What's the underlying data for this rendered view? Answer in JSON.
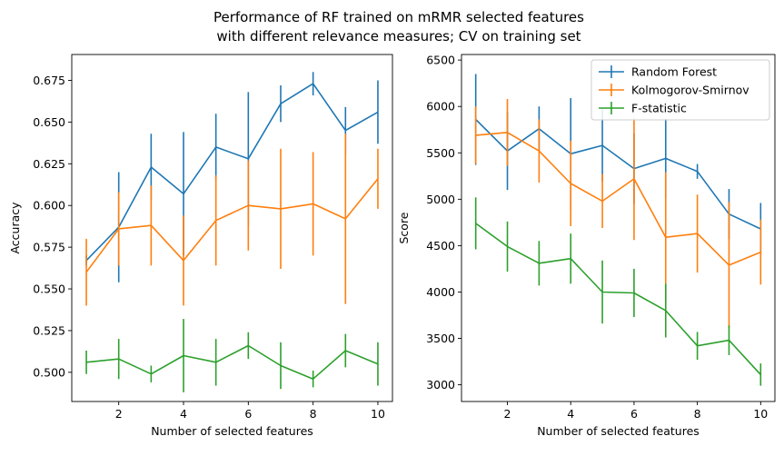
{
  "figure": {
    "title_line1": "Performance of RF trained on mRMR selected features",
    "title_line2": "with different relevance measures; CV on training set"
  },
  "chart_data": [
    {
      "type": "line",
      "xlabel": "Number of selected features",
      "ylabel": "Accuracy",
      "x": [
        1,
        2,
        3,
        4,
        5,
        6,
        7,
        8,
        9,
        10
      ],
      "xlim": [
        0.55,
        10.45
      ],
      "ylim": [
        0.4825,
        0.6905
      ],
      "xticks": [
        2,
        4,
        6,
        8,
        10
      ],
      "yticks": [
        0.5,
        0.525,
        0.55,
        0.575,
        0.6,
        0.625,
        0.65,
        0.675
      ],
      "ytick_labels": [
        "0.500",
        "0.525",
        "0.550",
        "0.575",
        "0.600",
        "0.625",
        "0.650",
        "0.675"
      ],
      "series": [
        {
          "name": "Random Forest",
          "color": "#1f77b4",
          "values": [
            0.567,
            0.587,
            0.623,
            0.607,
            0.635,
            0.628,
            0.661,
            0.673,
            0.645,
            0.656
          ],
          "errors": [
            0.003,
            0.033,
            0.02,
            0.037,
            0.02,
            0.04,
            0.011,
            0.007,
            0.014,
            0.019
          ]
        },
        {
          "name": "Kolmogorov-Smirnov",
          "color": "#ff7f0e",
          "values": [
            0.56,
            0.586,
            0.588,
            0.567,
            0.591,
            0.6,
            0.598,
            0.601,
            0.592,
            0.616
          ],
          "errors": [
            0.02,
            0.022,
            0.024,
            0.027,
            0.027,
            0.027,
            0.036,
            0.031,
            0.051,
            0.018
          ]
        },
        {
          "name": "F-statistic",
          "color": "#2ca02c",
          "values": [
            0.506,
            0.508,
            0.499,
            0.51,
            0.506,
            0.516,
            0.504,
            0.496,
            0.513,
            0.505
          ],
          "errors": [
            0.007,
            0.012,
            0.005,
            0.022,
            0.014,
            0.008,
            0.014,
            0.005,
            0.01,
            0.013
          ]
        }
      ]
    },
    {
      "type": "line",
      "xlabel": "Number of selected features",
      "ylabel": "Score",
      "x": [
        1,
        2,
        3,
        4,
        5,
        6,
        7,
        8,
        9,
        10
      ],
      "xlim": [
        0.55,
        10.45
      ],
      "ylim": [
        2820,
        6560
      ],
      "xticks": [
        2,
        4,
        6,
        8,
        10
      ],
      "yticks": [
        3000,
        3500,
        4000,
        4500,
        5000,
        5500,
        6000,
        6500
      ],
      "ytick_labels": [
        "3000",
        "3500",
        "4000",
        "4500",
        "5000",
        "5500",
        "6000",
        "6500"
      ],
      "legend": "top-right",
      "series": [
        {
          "name": "Random Forest",
          "color": "#1f77b4",
          "values": [
            5860,
            5520,
            5760,
            5490,
            5580,
            5330,
            5440,
            5300,
            4840,
            4680
          ],
          "errors": [
            490,
            420,
            240,
            600,
            390,
            380,
            430,
            80,
            270,
            280
          ]
        },
        {
          "name": "Kolmogorov-Smirnov",
          "color": "#ff7f0e",
          "values": [
            5690,
            5720,
            5520,
            5170,
            4980,
            5220,
            4590,
            4630,
            4290,
            4430
          ],
          "errors": [
            310,
            360,
            340,
            460,
            290,
            660,
            700,
            420,
            680,
            350
          ]
        },
        {
          "name": "F-statistic",
          "color": "#2ca02c",
          "values": [
            4740,
            4490,
            4310,
            4360,
            4000,
            3990,
            3800,
            3420,
            3480,
            3110
          ],
          "errors": [
            280,
            270,
            240,
            270,
            340,
            260,
            290,
            150,
            160,
            120
          ]
        }
      ]
    }
  ]
}
